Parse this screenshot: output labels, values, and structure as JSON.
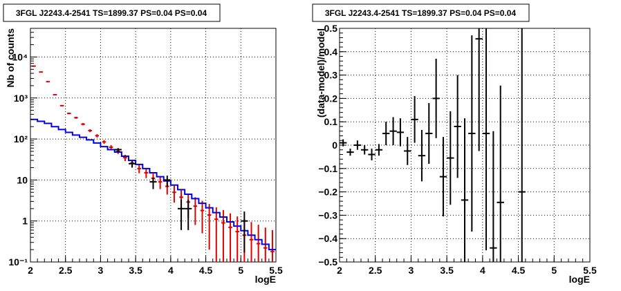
{
  "chart_data": [
    {
      "type": "line",
      "title": "3FGL J2243.4-2541 TS=1899.37 PS=0.04 PS=0.04",
      "xlabel": "logE",
      "ylabel": "Nb of counts",
      "xlim": [
        2,
        5.5
      ],
      "ylim": [
        0.1,
        50000
      ],
      "yscale": "log",
      "grid": true,
      "xticks": [
        "2",
        "2.5",
        "3",
        "3.5",
        "4",
        "4.5",
        "5",
        "5.5"
      ],
      "yticks": [
        {
          "label": "10⁻¹",
          "value": 0.1
        },
        {
          "label": "1",
          "value": 1
        },
        {
          "label": "10",
          "value": 10
        },
        {
          "label": "10²",
          "value": 100
        },
        {
          "label": "10³",
          "value": 1000
        },
        {
          "label": "10⁴",
          "value": 10000
        }
      ],
      "colors": {
        "model_total": "#e00000",
        "model_source": "#0000e0",
        "data": "#000000"
      },
      "series": [
        {
          "key": "model_total",
          "style": "bars-with-errors",
          "x": [
            2.05,
            2.15,
            2.25,
            2.35,
            2.45,
            2.55,
            2.65,
            2.75,
            2.85,
            2.95,
            3.05,
            3.15,
            3.25,
            3.35,
            3.45,
            3.55,
            3.65,
            3.75,
            3.85,
            3.95,
            4.05,
            4.15,
            4.25,
            4.35,
            4.45,
            4.55,
            4.65,
            4.75,
            4.85,
            4.95,
            5.05,
            5.15,
            5.25,
            5.35,
            5.45
          ],
          "y": [
            6000,
            4300,
            2500,
            1200,
            650,
            420,
            330,
            230,
            160,
            120,
            85,
            63,
            50,
            35,
            26,
            19,
            15,
            11,
            9,
            7,
            5,
            3.8,
            2.9,
            2.3,
            1.8,
            1.4,
            1.1,
            0.9,
            0.7,
            0.55,
            0.45,
            0.35,
            0.28,
            0.22,
            0.18
          ],
          "yerr": [
            90,
            70,
            50,
            35,
            25,
            20,
            18,
            15,
            13,
            11,
            9,
            8,
            7,
            6,
            5,
            4.4,
            3.9,
            3.3,
            3,
            2.6,
            2.2,
            1.9,
            1.7,
            1.5,
            1.3,
            1.2,
            1.05,
            0.95,
            0.84,
            0.74,
            0.67,
            0.59,
            0.53,
            0.47,
            0.42
          ]
        },
        {
          "key": "model_source",
          "style": "step",
          "x": [
            2.05,
            2.15,
            2.25,
            2.35,
            2.45,
            2.55,
            2.65,
            2.75,
            2.85,
            2.95,
            3.05,
            3.15,
            3.25,
            3.35,
            3.45,
            3.55,
            3.65,
            3.75,
            3.85,
            3.95,
            4.05,
            4.15,
            4.25,
            4.35,
            4.45,
            4.55,
            4.65,
            4.75,
            4.85,
            4.95,
            5.05,
            5.15,
            5.25,
            5.35,
            5.45
          ],
          "y": [
            300,
            270,
            240,
            200,
            170,
            145,
            125,
            110,
            95,
            80,
            65,
            55,
            48,
            38,
            30,
            24,
            19,
            15,
            12,
            9.5,
            7.5,
            5.8,
            4.5,
            3.5,
            2.7,
            2.1,
            1.6,
            1.25,
            0.95,
            0.75,
            0.58,
            0.45,
            0.35,
            0.27,
            0.2
          ]
        },
        {
          "key": "data",
          "style": "points-with-errors",
          "x": [
            3.25,
            3.45,
            3.75,
            3.95,
            4.15,
            4.25,
            5.05
          ],
          "y": [
            55,
            25,
            9,
            10,
            2,
            2,
            1
          ],
          "yerr": [
            [
              7,
              5
            ],
            [
              5,
              4
            ],
            [
              3,
              2.5
            ],
            [
              3.2,
              2.8
            ],
            [
              1.4,
              1.3
            ],
            [
              1.4,
              1.3
            ],
            [
              0.83,
              0.7
            ]
          ]
        }
      ]
    },
    {
      "type": "scatter",
      "title": "3FGL J2243.4-2541 TS=1899.37 PS=0.04 PS=0.04",
      "xlabel": "logE",
      "ylabel": "(data-model)/model",
      "xlim": [
        2,
        5.5
      ],
      "ylim": [
        -0.5,
        0.5
      ],
      "grid": true,
      "xticks": [
        "2",
        "2.5",
        "3",
        "3.5",
        "4",
        "4.5",
        "5",
        "5.5"
      ],
      "yticks": [
        "−0.5",
        "−0.4",
        "−0.3",
        "−0.2",
        "−0.1",
        "0",
        "0.1",
        "0.2",
        "0.3",
        "0.4",
        "0.5"
      ],
      "ytick_values": [
        -0.5,
        -0.4,
        -0.3,
        -0.2,
        -0.1,
        0,
        0.1,
        0.2,
        0.3,
        0.4,
        0.5
      ],
      "colors": {
        "data": "#000000"
      },
      "series": [
        {
          "key": "residuals",
          "x": [
            2.05,
            2.15,
            2.25,
            2.35,
            2.45,
            2.55,
            2.65,
            2.75,
            2.85,
            2.95,
            3.05,
            3.15,
            3.25,
            3.35,
            3.45,
            3.55,
            3.65,
            3.75,
            3.85,
            3.95,
            4.05,
            4.15,
            4.25,
            4.55
          ],
          "y": [
            0.01,
            -0.03,
            0.0,
            -0.02,
            -0.04,
            -0.02,
            0.05,
            0.06,
            0.055,
            -0.025,
            0.11,
            -0.045,
            0.05,
            0.2,
            -0.135,
            -0.055,
            0.08,
            -0.235,
            0.05,
            0.455,
            0.05,
            -0.44,
            -0.245,
            -0.2
          ],
          "yerr": [
            0.015,
            0.015,
            0.02,
            0.02,
            0.025,
            0.025,
            0.05,
            0.06,
            0.06,
            0.06,
            0.1,
            0.11,
            0.13,
            0.17,
            0.17,
            0.2,
            0.22,
            0.35,
            0.42,
            0.48,
            0.5,
            0.5,
            0.5,
            0.9
          ]
        }
      ]
    }
  ]
}
